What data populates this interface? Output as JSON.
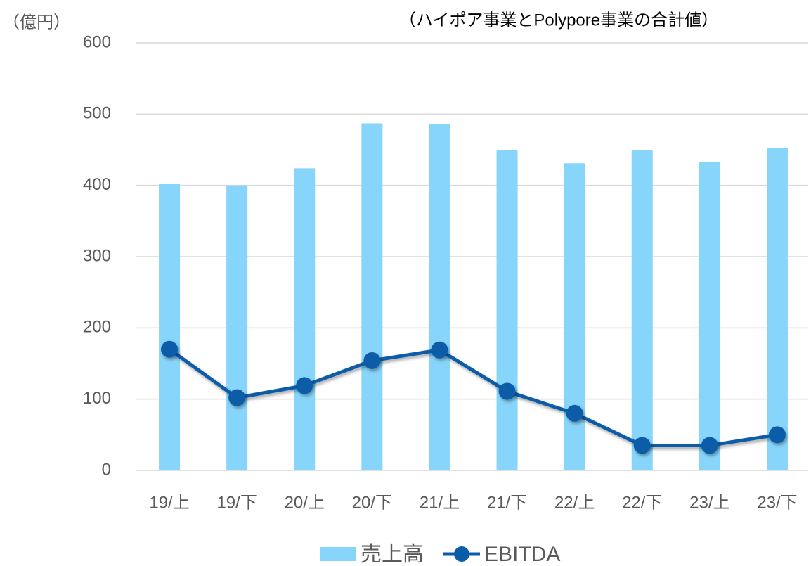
{
  "chart_data": {
    "type": "bar",
    "title": "（ハイポア事業とPolypore事業の合計値）",
    "y_label": "（億円）",
    "categories": [
      "19/上",
      "19/下",
      "20/上",
      "20/下",
      "21/上",
      "21/下",
      "22/上",
      "22/下",
      "23/上",
      "23/下"
    ],
    "series": [
      {
        "name": "売上高",
        "type": "bar",
        "color": "#87d5fa",
        "values": [
          402,
          400,
          424,
          487,
          486,
          450,
          431,
          450,
          433,
          452
        ]
      },
      {
        "name": "EBITDA",
        "type": "line",
        "color": "#0b5ca8",
        "values": [
          170,
          102,
          119,
          154,
          169,
          111,
          80,
          35,
          35,
          50
        ]
      }
    ],
    "ylim": [
      0,
      600
    ],
    "yticks": [
      0,
      100,
      200,
      300,
      400,
      500,
      600
    ],
    "grid": true,
    "legend": "bottom"
  }
}
